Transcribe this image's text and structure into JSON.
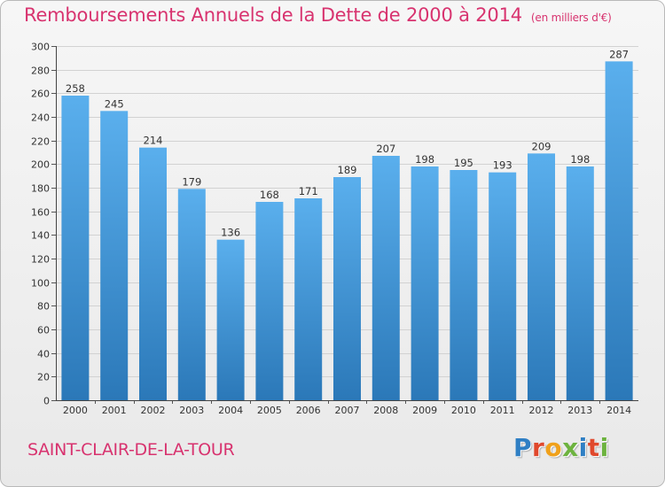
{
  "header": {
    "title": "Remboursements Annuels de la Dette de 2000 à 2014",
    "subtitle": "(en milliers d'€)"
  },
  "footer": {
    "commune": "SAINT-CLAIR-DE-LA-TOUR",
    "logo_letters": [
      "P",
      "r",
      "o",
      "x",
      "i",
      "t",
      "i"
    ]
  },
  "colors": {
    "title": "#d8336f",
    "bar_top": "#5aafed",
    "bar_bottom": "#2b78b8",
    "logo": [
      "#2f7fc4",
      "#e0482c",
      "#f0a11b",
      "#6db33f",
      "#2f7fc4",
      "#e0482c",
      "#6db33f"
    ]
  },
  "chart_data": {
    "type": "bar",
    "categories": [
      "2000",
      "2001",
      "2002",
      "2003",
      "2004",
      "2005",
      "2006",
      "2007",
      "2008",
      "2009",
      "2010",
      "2011",
      "2012",
      "2013",
      "2014"
    ],
    "values": [
      258,
      245,
      214,
      179,
      136,
      168,
      171,
      189,
      207,
      198,
      195,
      193,
      209,
      198,
      287
    ],
    "ylim": [
      0,
      300
    ],
    "ytick_step": 20,
    "grid": true,
    "data_labels": true
  }
}
